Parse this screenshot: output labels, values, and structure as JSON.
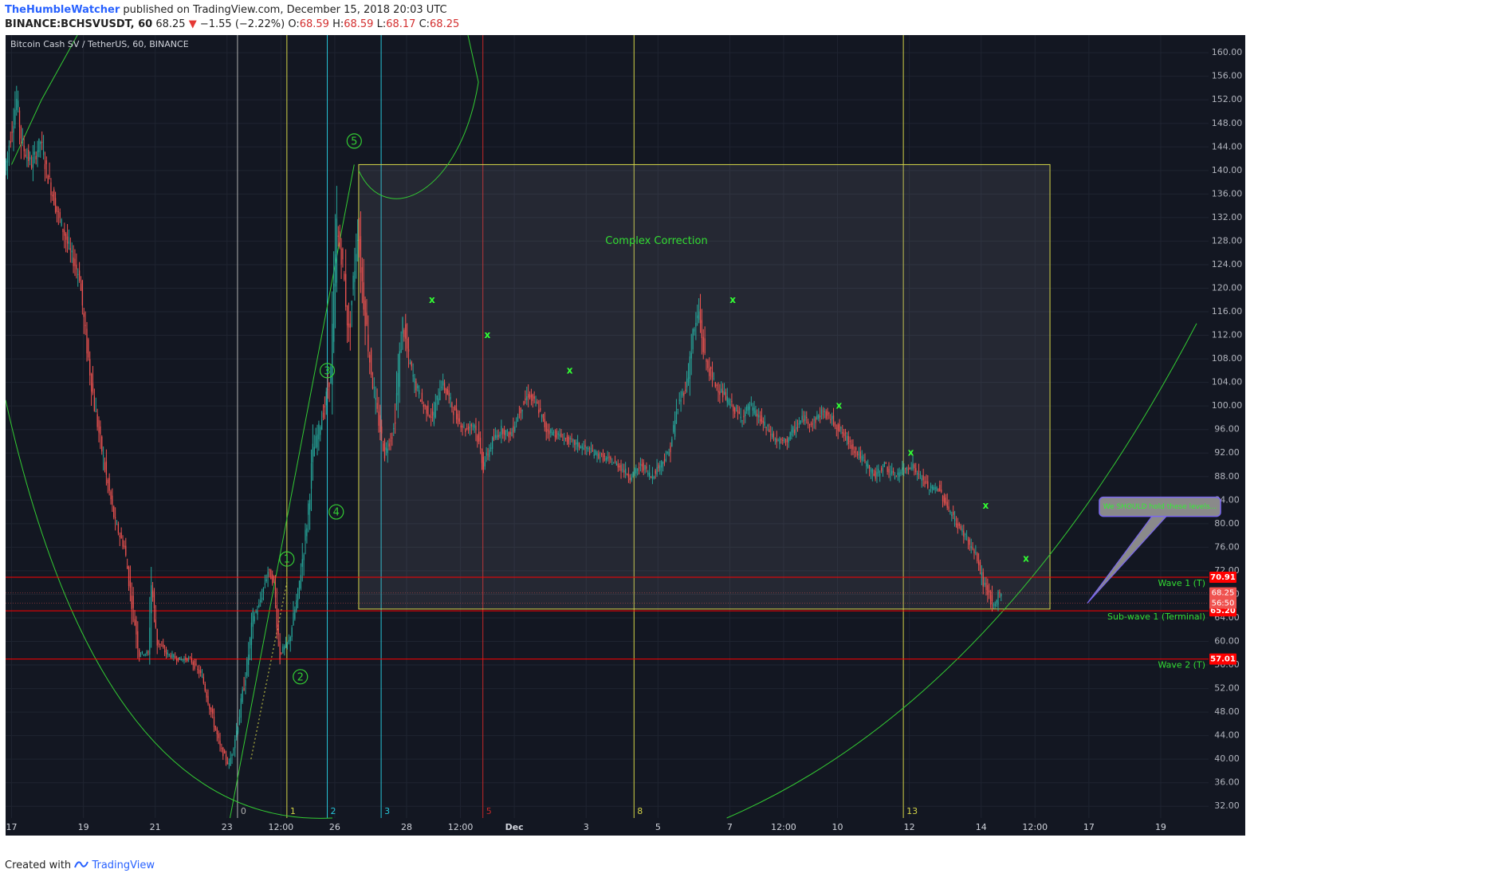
{
  "header": {
    "author": "TheHumbleWatcher",
    "published_text": "published on TradingView.com, December 15, 2018 20:03 UTC",
    "symbol": "BINANCE:BCHSVUSDT, 60",
    "last": "68.25",
    "change_arrow": "▼",
    "change": "−1.55 (−2.22%)",
    "o_label": "O:",
    "o_value": "68.59",
    "h_label": "H:",
    "h_value": "68.59",
    "l_label": "L:",
    "l_value": "68.17",
    "c_label": "C:",
    "c_value": "68.25"
  },
  "footer": {
    "created_with": "Created with",
    "brand": "TradingView",
    "logo_icon": "tradingview-logo-icon"
  },
  "colors": {
    "background": "#131722",
    "grid": "#1f2431",
    "up": "#26a69a",
    "down": "#ef5350",
    "annotation": "#33cc33",
    "hline": "#ff0000",
    "zone": "#d4d448"
  },
  "chart_data": {
    "type": "candlestick",
    "title": "Bitcoin Cash SV / TetherUS, 60, BINANCE",
    "ylim": [
      30,
      163
    ],
    "y_ticks": [
      "160.00",
      "156.00",
      "152.00",
      "148.00",
      "144.00",
      "140.00",
      "136.00",
      "132.00",
      "128.00",
      "124.00",
      "120.00",
      "116.00",
      "112.00",
      "108.00",
      "104.00",
      "100.00",
      "96.00",
      "92.00",
      "88.00",
      "84.00",
      "80.00",
      "76.00",
      "72.00",
      "68.00",
      "64.00",
      "60.00",
      "56.00",
      "52.00",
      "48.00",
      "44.00",
      "40.00",
      "36.00",
      "32.00"
    ],
    "x_ticks": [
      {
        "label": "17",
        "t": 0
      },
      {
        "label": "19",
        "t": 48
      },
      {
        "label": "21",
        "t": 96
      },
      {
        "label": "23",
        "t": 144
      },
      {
        "label": "12:00",
        "t": 180
      },
      {
        "label": "26",
        "t": 216
      },
      {
        "label": "28",
        "t": 264
      },
      {
        "label": "12:00",
        "t": 300
      },
      {
        "label": "Dec",
        "t": 336
      },
      {
        "label": "3",
        "t": 384
      },
      {
        "label": "5",
        "t": 432
      },
      {
        "label": "7",
        "t": 480
      },
      {
        "label": "12:00",
        "t": 516
      },
      {
        "label": "10",
        "t": 552
      },
      {
        "label": "12",
        "t": 600
      },
      {
        "label": "14",
        "t": 648
      },
      {
        "label": "12:00",
        "t": 684
      },
      {
        "label": "17",
        "t": 720
      },
      {
        "label": "19",
        "t": 768
      }
    ],
    "price_path": [
      [
        -4,
        140
      ],
      [
        4,
        152
      ],
      [
        8,
        144
      ],
      [
        14,
        141
      ],
      [
        20,
        145
      ],
      [
        24,
        140
      ],
      [
        30,
        134
      ],
      [
        40,
        126
      ],
      [
        46,
        122
      ],
      [
        50,
        112
      ],
      [
        56,
        100
      ],
      [
        64,
        88
      ],
      [
        70,
        80
      ],
      [
        76,
        76
      ],
      [
        82,
        65
      ],
      [
        86,
        58
      ],
      [
        92,
        58
      ],
      [
        94,
        70
      ],
      [
        98,
        60
      ],
      [
        104,
        58
      ],
      [
        112,
        57
      ],
      [
        120,
        57
      ],
      [
        128,
        54
      ],
      [
        134,
        48
      ],
      [
        140,
        42
      ],
      [
        146,
        39
      ],
      [
        152,
        46
      ],
      [
        158,
        56
      ],
      [
        162,
        64
      ],
      [
        166,
        66
      ],
      [
        172,
        72
      ],
      [
        176,
        70
      ],
      [
        180,
        58
      ],
      [
        186,
        60
      ],
      [
        192,
        68
      ],
      [
        198,
        80
      ],
      [
        202,
        92
      ],
      [
        206,
        96
      ],
      [
        210,
        100
      ],
      [
        214,
        106
      ],
      [
        218,
        130
      ],
      [
        222,
        124
      ],
      [
        226,
        112
      ],
      [
        232,
        130
      ],
      [
        236,
        118
      ],
      [
        240,
        108
      ],
      [
        244,
        100
      ],
      [
        250,
        92
      ],
      [
        256,
        96
      ],
      [
        262,
        114
      ],
      [
        266,
        108
      ],
      [
        270,
        104
      ],
      [
        276,
        100
      ],
      [
        282,
        98
      ],
      [
        288,
        104
      ],
      [
        292,
        102
      ],
      [
        298,
        98
      ],
      [
        304,
        96
      ],
      [
        310,
        97
      ],
      [
        316,
        90
      ],
      [
        322,
        94
      ],
      [
        328,
        96
      ],
      [
        334,
        95
      ],
      [
        340,
        99
      ],
      [
        346,
        102
      ],
      [
        352,
        100
      ],
      [
        358,
        96
      ],
      [
        366,
        95
      ],
      [
        374,
        94
      ],
      [
        382,
        93
      ],
      [
        390,
        92
      ],
      [
        398,
        91
      ],
      [
        406,
        90
      ],
      [
        414,
        88
      ],
      [
        422,
        90
      ],
      [
        428,
        88
      ],
      [
        434,
        90
      ],
      [
        440,
        92
      ],
      [
        446,
        100
      ],
      [
        452,
        104
      ],
      [
        456,
        112
      ],
      [
        460,
        116
      ],
      [
        464,
        108
      ],
      [
        470,
        104
      ],
      [
        476,
        102
      ],
      [
        482,
        100
      ],
      [
        488,
        98
      ],
      [
        494,
        100
      ],
      [
        500,
        98
      ],
      [
        506,
        96
      ],
      [
        512,
        94
      ],
      [
        518,
        94
      ],
      [
        524,
        96
      ],
      [
        530,
        98
      ],
      [
        536,
        97
      ],
      [
        542,
        99
      ],
      [
        548,
        98
      ],
      [
        554,
        96
      ],
      [
        560,
        94
      ],
      [
        566,
        92
      ],
      [
        572,
        90
      ],
      [
        578,
        88
      ],
      [
        584,
        90
      ],
      [
        590,
        88
      ],
      [
        596,
        89
      ],
      [
        602,
        90
      ],
      [
        608,
        88
      ],
      [
        614,
        86
      ],
      [
        620,
        86
      ],
      [
        626,
        83
      ],
      [
        632,
        80
      ],
      [
        638,
        78
      ],
      [
        642,
        76
      ],
      [
        646,
        74
      ],
      [
        650,
        70
      ],
      [
        654,
        68
      ],
      [
        656,
        66
      ],
      [
        658,
        66
      ],
      [
        660,
        68
      ],
      [
        662,
        68.25
      ]
    ],
    "horizontal_lines": [
      {
        "value": 70.91,
        "label": "70.91",
        "annotation": "Wave 1 (T)"
      },
      {
        "value": 65.2,
        "label": "65.20",
        "annotation": "Sub-wave 1 (Terminal)"
      },
      {
        "value": 57.01,
        "label": "57.01",
        "annotation": "Wave 2 (T)"
      }
    ],
    "price_badges": [
      {
        "value": 68.25,
        "label": "68.25"
      },
      {
        "value": 66.5,
        "label": "56:50"
      }
    ],
    "fib_time_lines": [
      {
        "label": "0",
        "t": 151,
        "color": "#b0b0b0"
      },
      {
        "label": "1",
        "t": 184,
        "color": "#d4d448"
      },
      {
        "label": "2",
        "t": 211,
        "color": "#26c6da"
      },
      {
        "label": "3",
        "t": 247,
        "color": "#26c6da"
      },
      {
        "label": "5",
        "t": 315,
        "color": "#c62828"
      },
      {
        "label": "8",
        "t": 416,
        "color": "#d4d448"
      },
      {
        "label": "13",
        "t": 596,
        "color": "#d4d448"
      }
    ],
    "correction_box": {
      "t_start": 232,
      "t_end": 694,
      "price_top": 141,
      "price_bottom": 65.5,
      "label": "Complex Correction"
    },
    "wave_labels": [
      {
        "label": "1",
        "t": 184,
        "price": 74
      },
      {
        "label": "2",
        "t": 193,
        "price": 54
      },
      {
        "label": "3",
        "t": 211,
        "price": 106
      },
      {
        "label": "4",
        "t": 217,
        "price": 82
      },
      {
        "label": "5",
        "t": 229,
        "price": 145
      }
    ],
    "x_markers": [
      {
        "label": "x",
        "t": 281,
        "price": 118
      },
      {
        "label": "x",
        "t": 318,
        "price": 112
      },
      {
        "label": "x",
        "t": 373,
        "price": 106
      },
      {
        "label": "x",
        "t": 482,
        "price": 118
      },
      {
        "label": "x",
        "t": 553,
        "price": 100
      },
      {
        "label": "x",
        "t": 601,
        "price": 92
      },
      {
        "label": "x",
        "t": 651,
        "price": 83
      },
      {
        "label": "x",
        "t": 678,
        "price": 74
      }
    ],
    "callout_text": "We SHOULD hold these levels..."
  }
}
